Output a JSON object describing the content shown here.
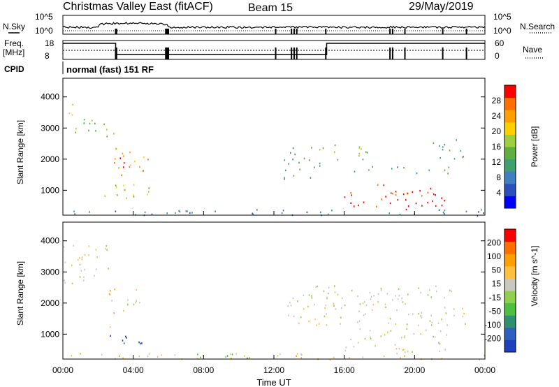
{
  "header": {
    "title": "Christmas Valley East (fitACF)",
    "beam": "Beam 15",
    "date": "29/May/2019"
  },
  "noise_panel": {
    "left_label": "N.Sky",
    "right_label": "N.Search",
    "left_ticks": [
      "10^5",
      "10^0"
    ],
    "right_ticks": [
      "10^5",
      "10^0"
    ],
    "gap_times_h": [
      3.0,
      3.05,
      5.85,
      5.9,
      5.95,
      6.0,
      12.1,
      13.0,
      13.15,
      13.3,
      14.95,
      18.6,
      18.75,
      19.45,
      21.6,
      22.95
    ]
  },
  "freq_panel": {
    "left_label_1": "Freq.",
    "left_label_2": "[MHz]",
    "left_ticks": [
      "18",
      "8"
    ],
    "right_label": "Nave",
    "right_ticks": [
      "60",
      "0"
    ],
    "freq_steps": [
      {
        "from_h": 0.0,
        "to_h": 3.0,
        "value": 16.5
      },
      {
        "from_h": 3.0,
        "to_h": 15.0,
        "value": 10.5
      },
      {
        "from_h": 15.0,
        "to_h": 24.0,
        "value": 16.5
      }
    ],
    "nave_dotted_level": 0.48
  },
  "cpid": {
    "label": "CPID",
    "text": "normal (fast) 151 RF"
  },
  "chart_data": [
    {
      "type": "heatmap",
      "title": "Power",
      "ylabel": "Slant Range [km]",
      "xlabel": "Time UT",
      "xlim": [
        0,
        24
      ],
      "ylim": [
        200,
        4600
      ],
      "y_ticks": [
        "1000",
        "2000",
        "3000",
        "4000"
      ],
      "x_ticks": [
        "00:00",
        "04:00",
        "08:00",
        "12:00",
        "16:00",
        "20:00",
        "00:00"
      ],
      "colorbar": {
        "label": "Power [dB]",
        "ticks": [
          "4",
          "8",
          "12",
          "16",
          "20",
          "24",
          "28"
        ],
        "colors": [
          "#0000ff",
          "#2a4fbf",
          "#3f7fbf",
          "#3f9f6f",
          "#5faf3f",
          "#9fcf3f",
          "#ffcf00",
          "#ff9f00",
          "#ff6f00",
          "#ff0000"
        ]
      },
      "regions": [
        {
          "t0": 0.0,
          "t1": 0.6,
          "r0": 3400,
          "r1": 3900,
          "level": 6
        },
        {
          "t0": 0.6,
          "t1": 2.6,
          "r0": 2600,
          "r1": 3300,
          "level": 4
        },
        {
          "t0": 2.6,
          "t1": 3.0,
          "r0": 2500,
          "r1": 2900,
          "level": 6
        },
        {
          "t0": 2.9,
          "t1": 5.0,
          "r0": 1500,
          "r1": 2400,
          "level": 7
        },
        {
          "t0": 3.0,
          "t1": 4.2,
          "r0": 1700,
          "r1": 2100,
          "level": 9
        },
        {
          "t0": 2.3,
          "t1": 5.0,
          "r0": 700,
          "r1": 1300,
          "level": 5
        },
        {
          "t0": 12.5,
          "t1": 14.6,
          "r0": 1300,
          "r1": 2400,
          "level": 3
        },
        {
          "t0": 14.5,
          "t1": 17.5,
          "r0": 2000,
          "r1": 2500,
          "level": 4
        },
        {
          "t0": 16.5,
          "t1": 22.0,
          "r0": 1550,
          "r1": 1800,
          "level": 3
        },
        {
          "t0": 21.0,
          "t1": 23.0,
          "r0": 2000,
          "r1": 2700,
          "level": 3
        },
        {
          "t0": 16.0,
          "t1": 21.8,
          "r0": 400,
          "r1": 1200,
          "level": 9
        },
        {
          "t0": 0.0,
          "t1": 24.0,
          "r0": 200,
          "r1": 400,
          "level": 2
        }
      ]
    },
    {
      "type": "heatmap",
      "title": "Velocity",
      "ylabel": "Slant Range [km]",
      "xlabel": "Time UT",
      "xlim": [
        0,
        24
      ],
      "ylim": [
        200,
        4600
      ],
      "y_ticks": [
        "1000",
        "2000",
        "3000",
        "4000"
      ],
      "x_ticks": [
        "00:00",
        "04:00",
        "08:00",
        "12:00",
        "16:00",
        "20:00",
        "00:00"
      ],
      "colorbar": {
        "label": "Velocity [m s^-1]",
        "ticks": [
          "200",
          "100",
          "50",
          "15",
          "-15",
          "-50",
          "-100",
          "-200"
        ],
        "colors": [
          "#1f3fbf",
          "#2f5fbf",
          "#2f8f6f",
          "#4fbf3f",
          "#8fd04f",
          "#c8c8c0",
          "#ffbf3f",
          "#ff9f00",
          "#ff6f00",
          "#ff0000"
        ]
      },
      "regions": [
        {
          "t0": 0.0,
          "t1": 2.6,
          "r0": 2600,
          "r1": 3900,
          "level": 5
        },
        {
          "t0": 2.6,
          "t1": 3.6,
          "r0": 1700,
          "r1": 2500,
          "level": 6
        },
        {
          "t0": 3.6,
          "t1": 4.9,
          "r0": 1900,
          "r1": 2500,
          "level": 5
        },
        {
          "t0": 2.5,
          "t1": 4.9,
          "r0": 700,
          "r1": 1100,
          "level": 0
        },
        {
          "t0": 2.3,
          "t1": 2.7,
          "r0": 1200,
          "r1": 1500,
          "level": 5
        },
        {
          "t0": 12.5,
          "t1": 23.0,
          "r0": 1300,
          "r1": 2600,
          "level": 5
        },
        {
          "t0": 16.0,
          "t1": 21.8,
          "r0": 400,
          "r1": 1200,
          "level": 5
        },
        {
          "t0": 0.0,
          "t1": 24.0,
          "r0": 200,
          "r1": 400,
          "level": 6
        },
        {
          "t0": 7.0,
          "t1": 10.5,
          "r0": 200,
          "r1": 400,
          "level": 3
        }
      ]
    }
  ]
}
